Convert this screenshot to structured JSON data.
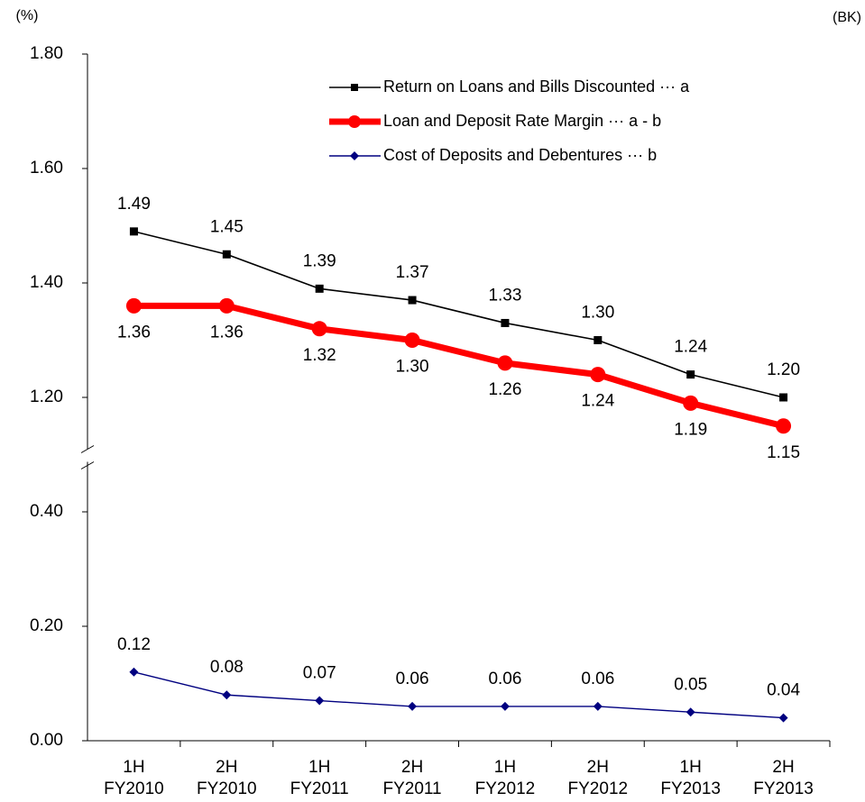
{
  "chart_data": {
    "type": "line",
    "y_unit": "(%)",
    "unit_note": "(BK)",
    "categories": [
      "1H\nFY2010",
      "2H\nFY2010",
      "1H\nFY2011",
      "2H\nFY2011",
      "1H\nFY2012",
      "2H\nFY2012",
      "1H\nFY2013",
      "2H\nFY2013"
    ],
    "series": [
      {
        "name": "Return on Loans and Bills Discounted ··· a",
        "color": "#000000",
        "marker": "square",
        "values": [
          1.49,
          1.45,
          1.39,
          1.37,
          1.33,
          1.3,
          1.24,
          1.2
        ],
        "value_labels": [
          "1.49",
          "1.45",
          "1.39",
          "1.37",
          "1.33",
          "1.30",
          "1.24",
          "1.20"
        ]
      },
      {
        "name": "Loan and Deposit Rate Margin ··· a - b",
        "color": "#ff0000",
        "marker": "circle",
        "values": [
          1.36,
          1.36,
          1.32,
          1.3,
          1.26,
          1.24,
          1.19,
          1.15
        ],
        "value_labels": [
          "1.36",
          "1.36",
          "1.32",
          "1.30",
          "1.26",
          "1.24",
          "1.19",
          "1.15"
        ]
      },
      {
        "name": "Cost of Deposits and Debentures ··· b",
        "color": "#000080",
        "marker": "diamond",
        "values": [
          0.12,
          0.08,
          0.07,
          0.06,
          0.06,
          0.06,
          0.05,
          0.04
        ],
        "value_labels": [
          "0.12",
          "0.08",
          "0.07",
          "0.06",
          "0.06",
          "0.06",
          "0.05",
          "0.04"
        ]
      }
    ],
    "ylim": [
      0,
      1.8
    ],
    "y_break": [
      0.5,
      1.1
    ],
    "yticks": [
      {
        "value": 0,
        "label": "0.00"
      },
      {
        "value": 0.2,
        "label": "0.20"
      },
      {
        "value": 0.4,
        "label": "0.40"
      },
      {
        "value": 1.2,
        "label": "1.20"
      },
      {
        "value": 1.4,
        "label": "1.40"
      },
      {
        "value": 1.6,
        "label": "1.60"
      },
      {
        "value": 1.8,
        "label": "1.80"
      }
    ],
    "grid": false
  }
}
